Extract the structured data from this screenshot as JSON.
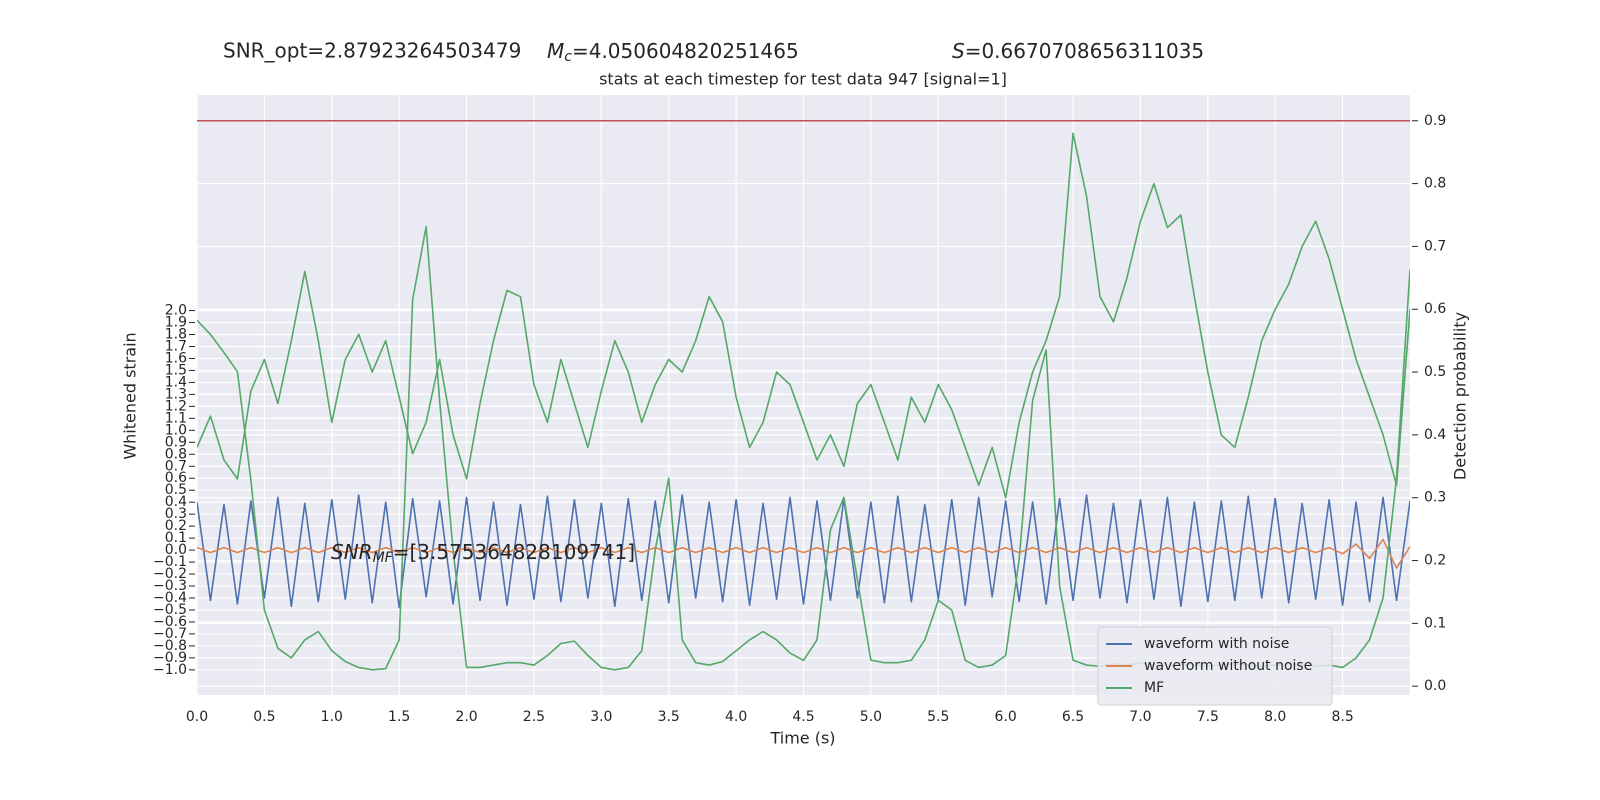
{
  "chart_data": {
    "type": "line",
    "header": [
      {
        "text": "SNR_opt=2.87923264503479"
      },
      {
        "symbol": "M",
        "subscript": "c",
        "rest": "=4.050604820251465"
      },
      {
        "symbol": "S",
        "rest": "=0.6670708656311035"
      }
    ],
    "title": "stats at each timestep for test data 947 [signal=1]",
    "annotation": {
      "symbol": "SNR",
      "subscript": "MF",
      "rest": "=[3.575364828109741]"
    },
    "xlabel": "Time (s)",
    "ylabel": "Whitened strain",
    "y2label": "Detection probability",
    "xlim": [
      0,
      9.0
    ],
    "ylim": [
      -1.21,
      3.8
    ],
    "y2lim": [
      -0.014,
      0.941
    ],
    "xticks": [
      {
        "value": 0,
        "label": "0.0"
      },
      {
        "value": 0.5,
        "label": "0.5"
      },
      {
        "value": 1,
        "label": "1.0"
      },
      {
        "value": 1.5,
        "label": "1.5"
      },
      {
        "value": 2,
        "label": "2.0"
      },
      {
        "value": 2.5,
        "label": "2.5"
      },
      {
        "value": 3,
        "label": "3.0"
      },
      {
        "value": 3.5,
        "label": "3.5"
      },
      {
        "value": 4,
        "label": "4.0"
      },
      {
        "value": 4.5,
        "label": "4.5"
      },
      {
        "value": 5,
        "label": "5.0"
      },
      {
        "value": 5.5,
        "label": "5.5"
      },
      {
        "value": 6,
        "label": "6.0"
      },
      {
        "value": 6.5,
        "label": "6.5"
      },
      {
        "value": 7,
        "label": "7.0"
      },
      {
        "value": 7.5,
        "label": "7.5"
      },
      {
        "value": 8,
        "label": "8.0"
      },
      {
        "value": 8.5,
        "label": "8.5"
      }
    ],
    "yticks": [
      {
        "value": -1.0,
        "label": "−1.0"
      },
      {
        "value": -0.9,
        "label": "−0.9"
      },
      {
        "value": -0.8,
        "label": "−0.8"
      },
      {
        "value": -0.7,
        "label": "−0.7"
      },
      {
        "value": -0.6,
        "label": "−0.6"
      },
      {
        "value": -0.5,
        "label": "−0.5"
      },
      {
        "value": -0.4,
        "label": "−0.4"
      },
      {
        "value": -0.3,
        "label": "−0.3"
      },
      {
        "value": -0.2,
        "label": "−0.2"
      },
      {
        "value": -0.1,
        "label": "−0.1"
      },
      {
        "value": 0,
        "label": "0.0"
      },
      {
        "value": 0.1,
        "label": "0.1"
      },
      {
        "value": 0.2,
        "label": "0.2"
      },
      {
        "value": 0.3,
        "label": "0.3"
      },
      {
        "value": 0.4,
        "label": "0.4"
      },
      {
        "value": 0.5,
        "label": "0.5"
      },
      {
        "value": 0.6,
        "label": "0.6"
      },
      {
        "value": 0.7,
        "label": "0.7"
      },
      {
        "value": 0.8,
        "label": "0.8"
      },
      {
        "value": 0.9,
        "label": "0.9"
      },
      {
        "value": 1.0,
        "label": "1.0"
      },
      {
        "value": 1.1,
        "label": "1.1"
      },
      {
        "value": 1.2,
        "label": "1.2"
      },
      {
        "value": 1.3,
        "label": "1.3"
      },
      {
        "value": 1.4,
        "label": "1.4"
      },
      {
        "value": 1.5,
        "label": "1.5"
      },
      {
        "value": 1.6,
        "label": "1.6"
      },
      {
        "value": 1.7,
        "label": "1.7"
      },
      {
        "value": 1.8,
        "label": "1.8"
      },
      {
        "value": 1.9,
        "label": "1.9"
      },
      {
        "value": 2.0,
        "label": "2.0"
      }
    ],
    "y2ticks": [
      {
        "value": 0,
        "label": "0.0"
      },
      {
        "value": 0.1,
        "label": "0.1"
      },
      {
        "value": 0.2,
        "label": "0.2"
      },
      {
        "value": 0.3,
        "label": "0.3"
      },
      {
        "value": 0.4,
        "label": "0.4"
      },
      {
        "value": 0.5,
        "label": "0.5"
      },
      {
        "value": 0.6,
        "label": "0.6"
      },
      {
        "value": 0.7,
        "label": "0.7"
      },
      {
        "value": 0.8,
        "label": "0.8"
      },
      {
        "value": 0.9,
        "label": "0.9"
      }
    ],
    "grid": true,
    "legend": "lower right",
    "threshold": {
      "value": 0.9,
      "axis": "y2",
      "color": "#c44e52"
    },
    "x": [
      0,
      0.1,
      0.2,
      0.3,
      0.4,
      0.5,
      0.6,
      0.7,
      0.8,
      0.9,
      1.0,
      1.1,
      1.2,
      1.3,
      1.4,
      1.5,
      1.6,
      1.7,
      1.8,
      1.9,
      2.0,
      2.1,
      2.2,
      2.3,
      2.4,
      2.5,
      2.6,
      2.7,
      2.8,
      2.9,
      3.0,
      3.1,
      3.2,
      3.3,
      3.4,
      3.5,
      3.6,
      3.7,
      3.8,
      3.9,
      4.0,
      4.1,
      4.2,
      4.3,
      4.4,
      4.5,
      4.6,
      4.7,
      4.8,
      4.9,
      5.0,
      5.1,
      5.2,
      5.3,
      5.4,
      5.5,
      5.6,
      5.7,
      5.8,
      5.9,
      6.0,
      6.1,
      6.2,
      6.3,
      6.4,
      6.5,
      6.6,
      6.7,
      6.8,
      6.9,
      7.0,
      7.1,
      7.2,
      7.3,
      7.4,
      7.5,
      7.6,
      7.7,
      7.8,
      7.9,
      8.0,
      8.1,
      8.2,
      8.3,
      8.4,
      8.5,
      8.6,
      8.7,
      8.8,
      8.9,
      9.0
    ],
    "series": [
      {
        "name": "waveform with noise",
        "color": "#4c72b0",
        "values": [
          0.4,
          -0.42,
          0.38,
          -0.45,
          0.41,
          -0.4,
          0.44,
          -0.47,
          0.39,
          -0.43,
          0.42,
          -0.41,
          0.46,
          -0.44,
          0.4,
          -0.48,
          0.43,
          -0.39,
          0.41,
          -0.45,
          0.44,
          -0.42,
          0.4,
          -0.46,
          0.38,
          -0.41,
          0.45,
          -0.43,
          0.42,
          -0.4,
          0.39,
          -0.47,
          0.43,
          -0.42,
          0.41,
          -0.44,
          0.46,
          -0.4,
          0.4,
          -0.43,
          0.42,
          -0.46,
          0.39,
          -0.41,
          0.44,
          -0.45,
          0.41,
          -0.42,
          0.43,
          -0.4,
          0.4,
          -0.44,
          0.45,
          -0.43,
          0.38,
          -0.41,
          0.42,
          -0.46,
          0.44,
          -0.39,
          0.41,
          -0.43,
          0.4,
          -0.45,
          0.43,
          -0.42,
          0.46,
          -0.4,
          0.39,
          -0.44,
          0.42,
          -0.41,
          0.44,
          -0.47,
          0.4,
          -0.43,
          0.41,
          -0.42,
          0.45,
          -0.4,
          0.43,
          -0.44,
          0.39,
          -0.41,
          0.42,
          -0.46,
          0.4,
          -0.43,
          0.44,
          -0.42,
          0.41
        ]
      },
      {
        "name": "waveform without noise",
        "color": "#dd8452",
        "values": [
          0.02,
          -0.02,
          0.02,
          -0.02,
          0.02,
          -0.02,
          0.02,
          -0.02,
          0.02,
          -0.02,
          0.02,
          -0.02,
          0.02,
          -0.02,
          0.02,
          -0.02,
          0.02,
          -0.02,
          0.02,
          -0.02,
          0.02,
          -0.02,
          0.02,
          -0.02,
          0.02,
          -0.02,
          0.02,
          -0.02,
          0.02,
          -0.02,
          0.02,
          -0.02,
          0.02,
          -0.02,
          0.02,
          -0.02,
          0.02,
          -0.02,
          0.02,
          -0.02,
          0.02,
          -0.02,
          0.02,
          -0.02,
          0.02,
          -0.02,
          0.02,
          -0.02,
          0.02,
          -0.02,
          0.02,
          -0.02,
          0.02,
          -0.02,
          0.02,
          -0.02,
          0.02,
          -0.02,
          0.02,
          -0.02,
          0.02,
          -0.02,
          0.02,
          -0.02,
          0.02,
          -0.02,
          0.02,
          -0.02,
          0.02,
          -0.02,
          0.02,
          -0.02,
          0.02,
          -0.02,
          0.02,
          -0.02,
          0.02,
          -0.02,
          0.02,
          -0.02,
          0.02,
          -0.02,
          0.02,
          -0.02,
          0.02,
          -0.03,
          0.05,
          -0.07,
          0.09,
          -0.15,
          0.03
        ]
      },
      {
        "name": "MF",
        "color": "#55a868",
        "values": [
          1.92,
          1.8,
          1.65,
          1.49,
          0.58,
          -0.5,
          -0.82,
          -0.9,
          -0.75,
          -0.68,
          -0.84,
          -0.93,
          -0.98,
          -1.0,
          -0.99,
          -0.75,
          2.09,
          2.7,
          1.25,
          0.0,
          -0.98,
          -0.98,
          -0.96,
          -0.94,
          -0.94,
          -0.96,
          -0.88,
          -0.78,
          -0.76,
          -0.88,
          -0.98,
          -1.0,
          -0.98,
          -0.84,
          0.0,
          0.6,
          -0.75,
          -0.94,
          -0.96,
          -0.93,
          -0.84,
          -0.75,
          -0.68,
          -0.75,
          -0.86,
          -0.92,
          -0.75,
          0.17,
          0.44,
          -0.25,
          -0.92,
          -0.94,
          -0.94,
          -0.92,
          -0.75,
          -0.42,
          -0.5,
          -0.92,
          -0.98,
          -0.96,
          -0.88,
          -0.08,
          1.25,
          1.67,
          -0.3,
          -0.92,
          -0.96,
          -0.97,
          -0.95,
          -0.96,
          -0.94,
          -0.96,
          -0.97,
          -0.95,
          -0.96,
          -0.97,
          -0.96,
          -0.95,
          -0.96,
          -0.97,
          -0.96,
          -0.95,
          -0.96,
          -0.97,
          -0.96,
          -0.98,
          -0.9,
          -0.75,
          -0.4,
          0.6,
          2.34
        ]
      },
      {
        "color": "#55a868",
        "axis": "y2",
        "values": [
          0.38,
          0.43,
          0.36,
          0.33,
          0.47,
          0.52,
          0.45,
          0.55,
          0.66,
          0.55,
          0.42,
          0.52,
          0.56,
          0.5,
          0.55,
          0.46,
          0.37,
          0.42,
          0.52,
          0.4,
          0.33,
          0.45,
          0.55,
          0.63,
          0.62,
          0.48,
          0.42,
          0.52,
          0.45,
          0.38,
          0.47,
          0.55,
          0.5,
          0.42,
          0.48,
          0.52,
          0.5,
          0.55,
          0.62,
          0.58,
          0.46,
          0.38,
          0.42,
          0.5,
          0.48,
          0.42,
          0.36,
          0.4,
          0.35,
          0.45,
          0.48,
          0.42,
          0.36,
          0.46,
          0.42,
          0.48,
          0.44,
          0.38,
          0.32,
          0.38,
          0.3,
          0.42,
          0.5,
          0.55,
          0.62,
          0.88,
          0.78,
          0.62,
          0.58,
          0.65,
          0.74,
          0.8,
          0.73,
          0.75,
          0.62,
          0.5,
          0.4,
          0.38,
          0.46,
          0.55,
          0.6,
          0.64,
          0.7,
          0.74,
          0.68,
          0.6,
          0.52,
          0.46,
          0.4,
          0.32,
          0.6
        ]
      }
    ]
  }
}
